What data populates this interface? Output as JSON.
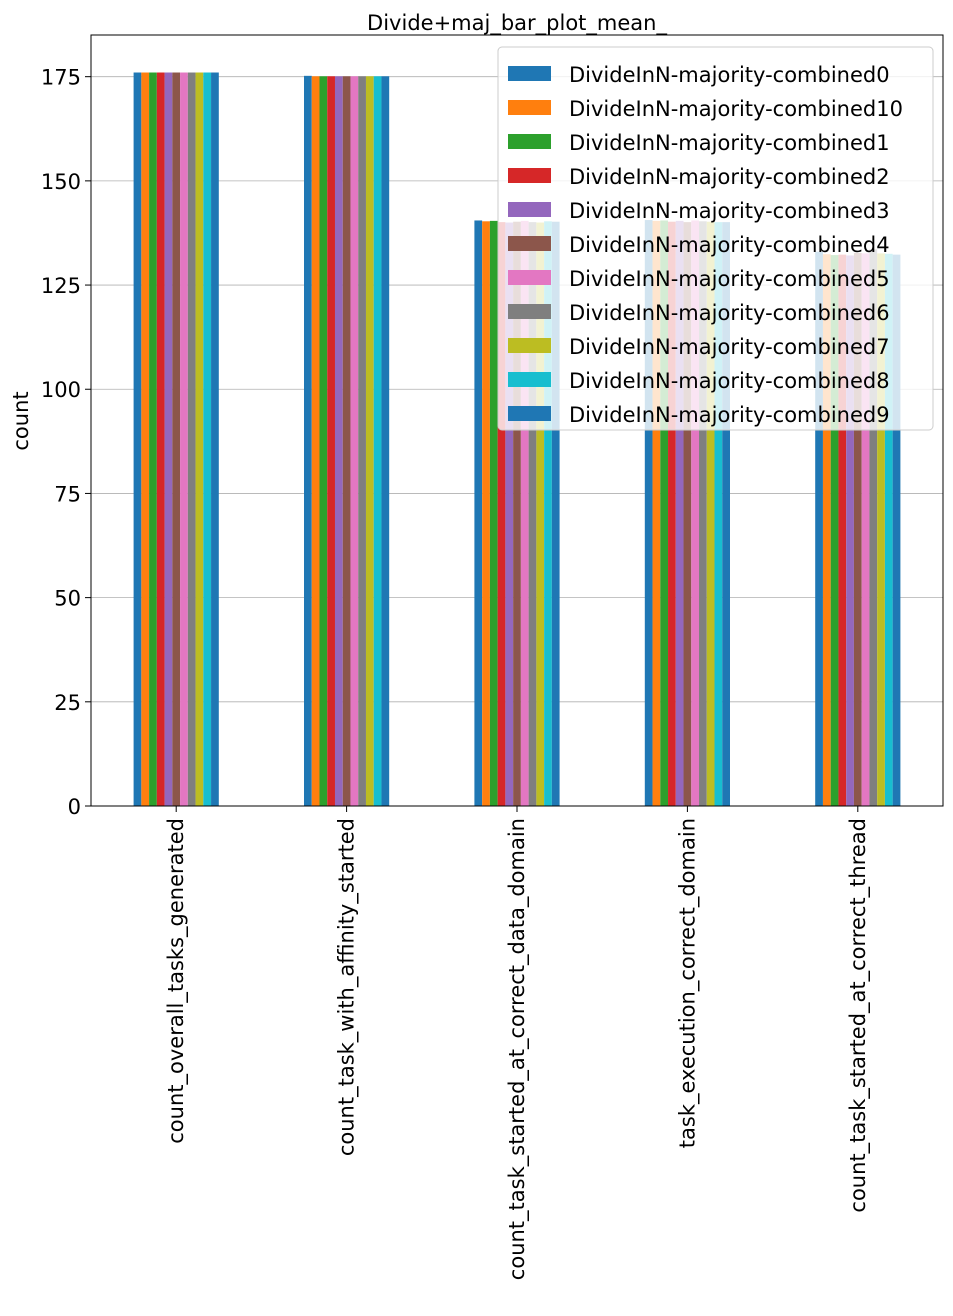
{
  "chart_data": {
    "type": "bar",
    "title": "Divide+maj_bar_plot_mean_",
    "xlabel": "",
    "ylabel": "count",
    "ylim": [
      0,
      185
    ],
    "yticks": [
      0,
      25,
      50,
      75,
      100,
      125,
      150,
      175
    ],
    "grid": "horizontal",
    "legend_position": "top-right",
    "categories": [
      "count_overall_tasks_generated",
      "count_task_with_affinity_started",
      "count_task_started_at_correct_data_domain",
      "task_execution_correct_domain",
      "count_task_started_at_correct_thread"
    ],
    "series": [
      {
        "name": "DivideInN-majority-combined0",
        "color": "#1f77b4",
        "values": [
          176,
          175.2,
          140.5,
          140.6,
          133.0
        ]
      },
      {
        "name": "DivideInN-majority-combined10",
        "color": "#ff7f0e",
        "values": [
          176,
          175.1,
          140.3,
          140.4,
          132.4
        ]
      },
      {
        "name": "DivideInN-majority-combined1",
        "color": "#2ca02c",
        "values": [
          176,
          175.1,
          140.4,
          140.5,
          132.2
        ]
      },
      {
        "name": "DivideInN-majority-combined2",
        "color": "#d62728",
        "values": [
          176,
          175.1,
          140.1,
          140.2,
          132.3
        ]
      },
      {
        "name": "DivideInN-majority-combined3",
        "color": "#9467bd",
        "values": [
          176,
          175.1,
          140.0,
          140.4,
          132.1
        ]
      },
      {
        "name": "DivideInN-majority-combined4",
        "color": "#8c564b",
        "values": [
          176,
          175.1,
          140.2,
          140.1,
          132.7
        ]
      },
      {
        "name": "DivideInN-majority-combined5",
        "color": "#e377c2",
        "values": [
          176,
          175.1,
          140.4,
          140.5,
          132.6
        ]
      },
      {
        "name": "DivideInN-majority-combined6",
        "color": "#7f7f7f",
        "values": [
          176,
          175.1,
          140.1,
          140.3,
          133.6
        ]
      },
      {
        "name": "DivideInN-majority-combined7",
        "color": "#bcbd22",
        "values": [
          176,
          175.1,
          140.0,
          140.2,
          132.6
        ]
      },
      {
        "name": "DivideInN-majority-combined8",
        "color": "#17becf",
        "values": [
          176,
          175.1,
          140.3,
          140.1,
          132.5
        ]
      },
      {
        "name": "DivideInN-majority-combined9",
        "color": "#1f77b4",
        "values": [
          176,
          175.1,
          140.2,
          140.1,
          132.3
        ]
      }
    ]
  }
}
